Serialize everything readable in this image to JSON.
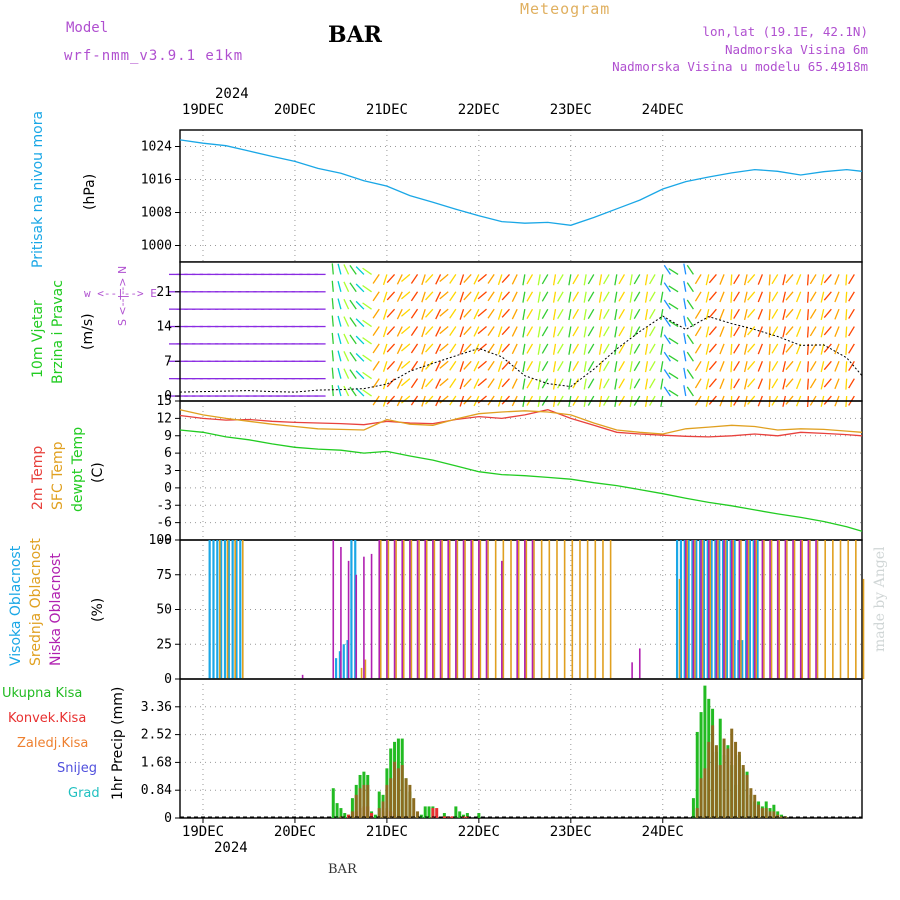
{
  "header": {
    "model_label": "Model",
    "model_name": "wrf-nmm_v3.9.1 e1km",
    "station": "BAR",
    "product": "Meteogram",
    "lonlat": "lon,lat (19.1E, 42.1N)",
    "altitude": "Nadmorska Visina 6m",
    "model_altitude": "Nadmorska Visina u modelu 65.4918m",
    "watermark": "made by Angel",
    "footer_station": "BAR"
  },
  "colors": {
    "pressure": "#1aa7e6",
    "temp2m": "#e8413d",
    "sfc_temp": "#e0a020",
    "dewpt": "#22cc22",
    "high_cloud": "#1aa7e6",
    "mid_cloud": "#e0a020",
    "low_cloud": "#b020b0",
    "precip_total": "#22bb22",
    "precip_conv": "#e83030",
    "precip_frozen": "#ee8030",
    "snow": "#5050dd",
    "hail": "#20c0c0",
    "purple": "#b050d0",
    "gold": "#e0b060"
  },
  "chart_data": [
    {
      "type": "line",
      "title": "Pritisak na nivou mora",
      "ylabel": "(hPa)",
      "x_top_year": "2024",
      "x_top_ticks": [
        "19DEC",
        "20DEC",
        "21DEC",
        "22DEC",
        "23DEC",
        "24DEC"
      ],
      "ylim": [
        996,
        1028
      ],
      "yticks": [
        1000,
        1008,
        1016,
        1024
      ],
      "grid": true,
      "series": [
        {
          "x_hours": [
            0,
            6,
            12,
            18,
            24,
            30,
            36,
            42,
            48,
            54,
            60,
            66,
            72,
            78,
            84,
            90,
            96,
            102,
            108,
            114,
            120,
            126,
            132,
            138,
            144,
            150,
            156,
            162,
            168,
            174,
            178
          ],
          "values": [
            1025.6,
            1024.8,
            1024.2,
            1022.9,
            1021.6,
            1020.4,
            1018.7,
            1017.5,
            1015.7,
            1014.4,
            1012.1,
            1010.5,
            1008.8,
            1007.2,
            1005.8,
            1005.4,
            1005.6,
            1004.9,
            1006.8,
            1008.9,
            1011.0,
            1013.7,
            1015.5,
            1016.6,
            1017.6,
            1018.4,
            1018.0,
            1017.1,
            1017.9,
            1018.4,
            1018.0
          ]
        }
      ]
    },
    {
      "type": "line",
      "title": "10m Vjetar Brzina i Pravac",
      "ylabel": "(m/s)",
      "direction_legend": "w <--|--> E",
      "direction_legend_ns": "S <--|--> N",
      "ylim": [
        -1,
        27
      ],
      "yticks": [
        0,
        7,
        14,
        21
      ],
      "series": [
        {
          "x_hours": [
            0,
            6,
            12,
            18,
            24,
            30,
            36,
            42,
            48,
            54,
            60,
            66,
            72,
            78,
            84,
            90,
            96,
            102,
            108,
            114,
            120,
            126,
            132,
            138,
            144,
            150,
            156,
            162,
            168,
            174,
            178
          ],
          "values": [
            0.8,
            0.9,
            1.0,
            1.1,
            0.9,
            0.8,
            1.2,
            1.3,
            1.5,
            2.4,
            5.0,
            6.6,
            8.1,
            9.6,
            7.9,
            4.1,
            2.5,
            1.9,
            5.4,
            9.5,
            13.0,
            16.1,
            13.4,
            16.0,
            14.6,
            13.4,
            12.0,
            10.2,
            10.3,
            7.7,
            4.1
          ]
        }
      ]
    },
    {
      "type": "line",
      "title": "2m Temp / SFC Temp / dewpt Temp",
      "ylabel": "(C)",
      "ylim": [
        -9,
        15
      ],
      "yticks": [
        -9,
        -6,
        -3,
        0,
        3,
        6,
        9,
        12,
        15
      ],
      "series": [
        {
          "name": "2m Temp",
          "values": [
            12.5,
            12.0,
            11.7,
            11.8,
            11.5,
            11.3,
            11.2,
            11.1,
            10.9,
            11.5,
            11.2,
            11.1,
            11.8,
            12.3,
            12.0,
            12.6,
            13.5,
            12.0,
            10.8,
            9.6,
            9.3,
            9.1,
            8.9,
            8.8,
            9.0,
            9.3,
            9.0,
            9.6,
            9.4,
            9.2,
            9.0
          ]
        },
        {
          "name": "SFC Temp",
          "values": [
            13.5,
            12.6,
            12.0,
            11.5,
            11.0,
            10.6,
            10.2,
            10.1,
            10.0,
            11.8,
            11.0,
            10.8,
            11.9,
            12.8,
            13.1,
            13.3,
            13.1,
            12.6,
            11.2,
            10.0,
            9.6,
            9.3,
            10.2,
            10.5,
            10.8,
            10.6,
            10.0,
            10.2,
            10.1,
            9.8,
            9.6
          ]
        },
        {
          "name": "dewpt Temp",
          "values": [
            10.0,
            9.6,
            8.8,
            8.3,
            7.6,
            7.0,
            6.7,
            6.5,
            6.0,
            6.3,
            5.5,
            4.8,
            3.8,
            2.8,
            2.3,
            2.1,
            1.8,
            1.5,
            0.9,
            0.4,
            -0.3,
            -1.0,
            -1.8,
            -2.5,
            -3.1,
            -3.8,
            -4.5,
            -5.1,
            -5.8,
            -6.7,
            -7.5
          ]
        }
      ],
      "x_hours": [
        0,
        6,
        12,
        18,
        24,
        30,
        36,
        42,
        48,
        54,
        60,
        66,
        72,
        78,
        84,
        90,
        96,
        102,
        108,
        114,
        120,
        126,
        132,
        138,
        144,
        150,
        156,
        162,
        168,
        174,
        178
      ]
    },
    {
      "type": "bar",
      "title": "Visoka Oblacnost / Srednja Oblacnost / Niska Oblacnost",
      "ylabel": "(%)",
      "ylim": [
        0,
        100
      ],
      "yticks": [
        0,
        25,
        50,
        75,
        100
      ],
      "series": [
        {
          "name": "Visoka Oblacnost",
          "x_hours": [
            8,
            9,
            10,
            11,
            12,
            13,
            14,
            15,
            16,
            41,
            42,
            43,
            44,
            45,
            46,
            130,
            131,
            132,
            133,
            134,
            135,
            136,
            137,
            138,
            139,
            140,
            141,
            142,
            143,
            144,
            145,
            146,
            147,
            148,
            149,
            150,
            151
          ],
          "values": [
            100,
            100,
            100,
            100,
            100,
            100,
            100,
            100,
            100,
            15,
            20,
            25,
            28,
            100,
            100,
            100,
            100,
            100,
            100,
            100,
            100,
            100,
            100,
            100,
            100,
            100,
            100,
            100,
            100,
            100,
            100,
            28,
            28,
            100,
            100,
            100,
            100
          ]
        },
        {
          "name": "Srednja Oblacnost",
          "x_hours": [
            10,
            12,
            14,
            16,
            47,
            48,
            52,
            54,
            56,
            58,
            60,
            62,
            64,
            66,
            68,
            70,
            72,
            74,
            76,
            78,
            80,
            82,
            84,
            86,
            88,
            90,
            92,
            94,
            96,
            98,
            100,
            102,
            104,
            106,
            108,
            110,
            112,
            130,
            132,
            134,
            136,
            138,
            140,
            142,
            144,
            146,
            148,
            150,
            152,
            154,
            156,
            158,
            160,
            162,
            164,
            166,
            168,
            170,
            172,
            174,
            176,
            178
          ],
          "values": [
            100,
            100,
            100,
            100,
            8,
            14,
            100,
            100,
            100,
            100,
            100,
            100,
            100,
            100,
            100,
            100,
            100,
            100,
            100,
            100,
            100,
            100,
            100,
            100,
            100,
            100,
            100,
            100,
            100,
            100,
            100,
            100,
            100,
            100,
            100,
            100,
            100,
            72,
            100,
            100,
            100,
            100,
            100,
            100,
            100,
            100,
            100,
            100,
            100,
            100,
            100,
            100,
            100,
            100,
            100,
            100,
            100,
            100,
            100,
            100,
            100,
            72
          ]
        },
        {
          "name": "Niska Oblacnost",
          "x_hours": [
            32,
            40,
            42,
            44,
            46,
            48,
            50,
            52,
            54,
            56,
            58,
            60,
            62,
            64,
            66,
            68,
            70,
            72,
            74,
            76,
            78,
            80,
            84,
            88,
            90,
            92,
            118,
            120,
            132,
            134,
            136,
            138,
            140,
            142,
            144,
            146,
            148,
            150,
            152,
            154,
            156,
            158,
            160,
            162,
            164,
            166
          ],
          "values": [
            3,
            100,
            95,
            85,
            75,
            88,
            90,
            100,
            100,
            100,
            100,
            100,
            100,
            100,
            100,
            100,
            100,
            100,
            100,
            100,
            100,
            100,
            85,
            100,
            100,
            100,
            12,
            22,
            100,
            100,
            100,
            100,
            100,
            100,
            100,
            100,
            100,
            100,
            100,
            100,
            100,
            100,
            100,
            100,
            100,
            100
          ]
        }
      ]
    },
    {
      "type": "bar",
      "title": "1hr Precip (mm)",
      "ylabel": "1hr Precip (mm)",
      "legend": [
        "Ukupna Kisa",
        "Konvek.Kisa",
        "Zaledj.Kisa",
        "Snijeg",
        "Grad"
      ],
      "ylim": [
        0,
        4.2
      ],
      "yticks": [
        0,
        0.84,
        1.68,
        2.52,
        3.36
      ],
      "x_bottom_ticks": [
        "19DEC",
        "20DEC",
        "21DEC",
        "22DEC",
        "23DEC",
        "24DEC"
      ],
      "x_bottom_year": "2024",
      "series": [
        {
          "name": "Ukupna Kisa",
          "x_hours": [
            40,
            41,
            42,
            43,
            44,
            45,
            46,
            47,
            48,
            49,
            50,
            51,
            52,
            53,
            54,
            55,
            56,
            57,
            58,
            59,
            60,
            63,
            64,
            65,
            66,
            67,
            69,
            72,
            73,
            74,
            75,
            78,
            134,
            135,
            136,
            137,
            138,
            139,
            140,
            141,
            142,
            143,
            144,
            145,
            146,
            147,
            148,
            149,
            150,
            151,
            152,
            153,
            154,
            155,
            156,
            157,
            158
          ],
          "values": [
            0.9,
            0.45,
            0.3,
            0.15,
            0.1,
            0.6,
            1.0,
            1.3,
            1.4,
            1.3,
            0.2,
            0.1,
            0.8,
            0.7,
            1.5,
            2.1,
            2.3,
            2.4,
            2.4,
            1.2,
            0.8,
            0.1,
            0.35,
            0.35,
            0.35,
            0.05,
            0.15,
            0.35,
            0.2,
            0.1,
            0.15,
            0.15,
            0.6,
            2.6,
            3.2,
            4.0,
            3.6,
            3.3,
            2.0,
            3.0,
            1.9,
            2.2,
            1.6,
            1.0,
            1.9,
            1.5,
            1.4,
            0.7,
            0.5,
            0.5,
            0.35,
            0.5,
            0.3,
            0.4,
            0.2,
            0.1,
            0.05
          ]
        },
        {
          "name": "Konvek.Kisa",
          "x_hours": [
            44,
            46,
            47,
            48,
            49,
            50,
            53,
            54,
            55,
            56,
            57,
            58,
            59,
            60,
            66,
            67,
            69,
            70,
            71,
            74,
            75
          ],
          "values": [
            0.1,
            0.2,
            0.3,
            0.35,
            0.35,
            0.15,
            0.2,
            0.3,
            0.2,
            0.1,
            0.05,
            0.05,
            0.05,
            0.05,
            0.3,
            0.3,
            0.05,
            0.05,
            0.05,
            0.05,
            0.05
          ]
        },
        {
          "name": "Zaledj.Kisa",
          "x_hours": [
            42,
            45,
            46,
            47,
            48,
            49,
            52,
            53,
            54,
            55,
            56,
            57,
            58,
            59,
            60,
            61,
            62,
            135,
            136,
            137,
            138,
            139,
            140,
            141,
            142,
            143,
            144,
            145,
            146,
            147,
            148,
            149,
            150,
            151,
            152,
            153,
            154,
            155,
            156,
            157,
            158
          ],
          "values": [
            0.05,
            0.2,
            0.7,
            0.9,
            1.0,
            1.0,
            0.3,
            0.5,
            1.0,
            1.2,
            1.7,
            1.5,
            1.6,
            1.2,
            1.0,
            0.6,
            0.2,
            0.3,
            1.2,
            1.5,
            2.3,
            2.8,
            2.2,
            1.6,
            2.4,
            2.1,
            2.7,
            2.3,
            2.0,
            1.6,
            1.3,
            0.9,
            0.7,
            0.4,
            0.3,
            0.3,
            0.2,
            0.2,
            0.1,
            0.05,
            0.05
          ]
        }
      ]
    }
  ]
}
